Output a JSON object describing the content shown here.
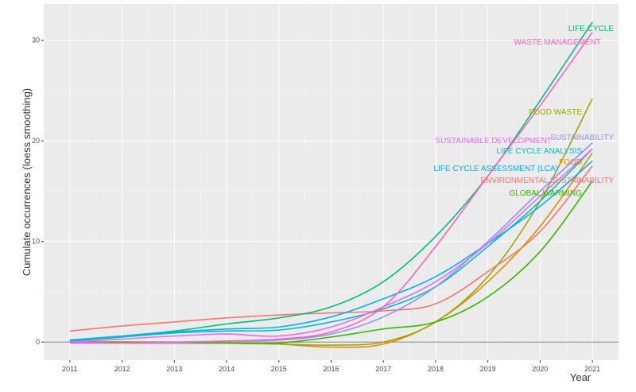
{
  "chart_data": {
    "type": "line",
    "title": "",
    "xlabel": "Year",
    "ylabel": "Cumulate occurrences (loess smoothing)",
    "xlim": [
      2010.5,
      2021.5
    ],
    "ylim": [
      -1.8,
      33.6
    ],
    "x_ticks": [
      "2011",
      "2012",
      "2013",
      "2014",
      "2015",
      "2016",
      "2017",
      "2018",
      "2019",
      "2020",
      "2021"
    ],
    "y_ticks": [
      "0",
      "10",
      "20",
      "30"
    ],
    "grid": true,
    "legend": "direct labels",
    "x": [
      2011,
      2012,
      2013,
      2014,
      2015,
      2016,
      2017,
      2018,
      2019,
      2020,
      2021
    ],
    "series": [
      {
        "name": "ENVIRONMENTAL SUSTAINABILITY",
        "color": "#F8766D",
        "values": [
          1.1,
          1.6,
          2.0,
          2.4,
          2.7,
          2.9,
          3.1,
          3.8,
          7,
          11,
          17.5
        ]
      },
      {
        "name": "FOOD",
        "color": "#D89000",
        "values": [
          0,
          0,
          0,
          -0.1,
          -0.2,
          -0.5,
          -0.2,
          2,
          6,
          11.5,
          18.8
        ]
      },
      {
        "name": "FOOD WASTE",
        "color": "#A3A500",
        "values": [
          0,
          0,
          0,
          -0.1,
          -0.2,
          -0.3,
          0,
          2,
          6.5,
          14,
          24.2
        ]
      },
      {
        "name": "GLOBAL WARMING",
        "color": "#39B600",
        "values": [
          0,
          0,
          -0.1,
          -0.1,
          -0.1,
          0.5,
          1.3,
          2,
          4.5,
          9,
          16
        ]
      },
      {
        "name": "LIFE CYCLE",
        "color": "#00BF7D",
        "values": [
          0.2,
          0.6,
          1.1,
          1.8,
          2.4,
          3.5,
          6,
          10.5,
          16.5,
          24,
          31.8
        ]
      },
      {
        "name": "LIFE CYCLE ANALYSIS",
        "color": "#00BFC4",
        "values": [
          0.1,
          0.5,
          0.9,
          1.1,
          1.2,
          2,
          3.3,
          5.5,
          9.5,
          14,
          19.2
        ]
      },
      {
        "name": "LIFE CYCLE ASSESSMENT (LCA)",
        "color": "#00B0F6",
        "values": [
          0.2,
          0.6,
          1,
          1.3,
          1.5,
          2.5,
          4.3,
          6.5,
          9.8,
          13.5,
          18
        ]
      },
      {
        "name": "SUSTAINABILITY",
        "color": "#9590FF",
        "values": [
          -0.1,
          -0.1,
          0,
          0.1,
          0.2,
          0.8,
          2.5,
          5.5,
          10,
          15,
          19.8
        ]
      },
      {
        "name": "SUSTAINABLE DEVELOPMENT",
        "color": "#E76BF3",
        "values": [
          0,
          0.3,
          0.6,
          0.8,
          0.6,
          1.5,
          3.5,
          6,
          9.8,
          14.5,
          19.2
        ]
      },
      {
        "name": "WASTE MANAGEMENT",
        "color": "#FF62BC",
        "values": [
          0,
          -0.1,
          -0.1,
          0.1,
          0.3,
          1,
          3.5,
          9.5,
          16.5,
          23.5,
          30.8
        ]
      }
    ]
  }
}
